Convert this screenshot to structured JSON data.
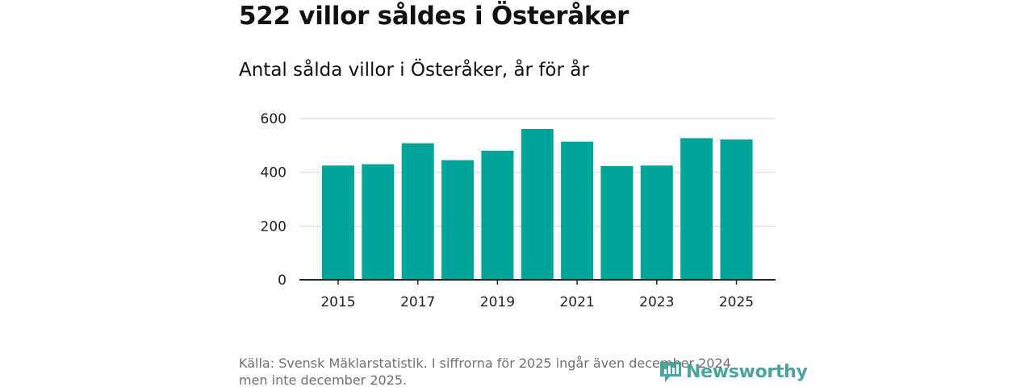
{
  "title": "522 villor såldes i Österåker",
  "subtitle": "Antal sålda villor i Österåker, år för år",
  "footer": {
    "line1": "Källa: Svensk Mäklarstatistik. I siffrorna för 2025 ingår även december 2024",
    "line2": "men inte december 2025."
  },
  "brand": {
    "name": "Newsworthy",
    "icon": "newsworthy-logo-icon",
    "color": "#3d9c96"
  },
  "chart_data": {
    "type": "bar",
    "title": "Antal sålda villor i Österåker, år för år",
    "xlabel": "",
    "ylabel": "",
    "categories": [
      "2015",
      "2016",
      "2017",
      "2018",
      "2019",
      "2020",
      "2021",
      "2022",
      "2023",
      "2024",
      "2025"
    ],
    "values": [
      425,
      430,
      508,
      445,
      480,
      561,
      514,
      423,
      425,
      527,
      522
    ],
    "ylim": [
      0,
      600
    ],
    "yticks": [
      0,
      200,
      400,
      600
    ],
    "xtick_labels": [
      "2015",
      "2017",
      "2019",
      "2021",
      "2023",
      "2025"
    ],
    "grid": true,
    "legend": "none",
    "bar_color": "#00a59a",
    "grid_color": "#d9d9d9",
    "axis_color": "#222222"
  }
}
